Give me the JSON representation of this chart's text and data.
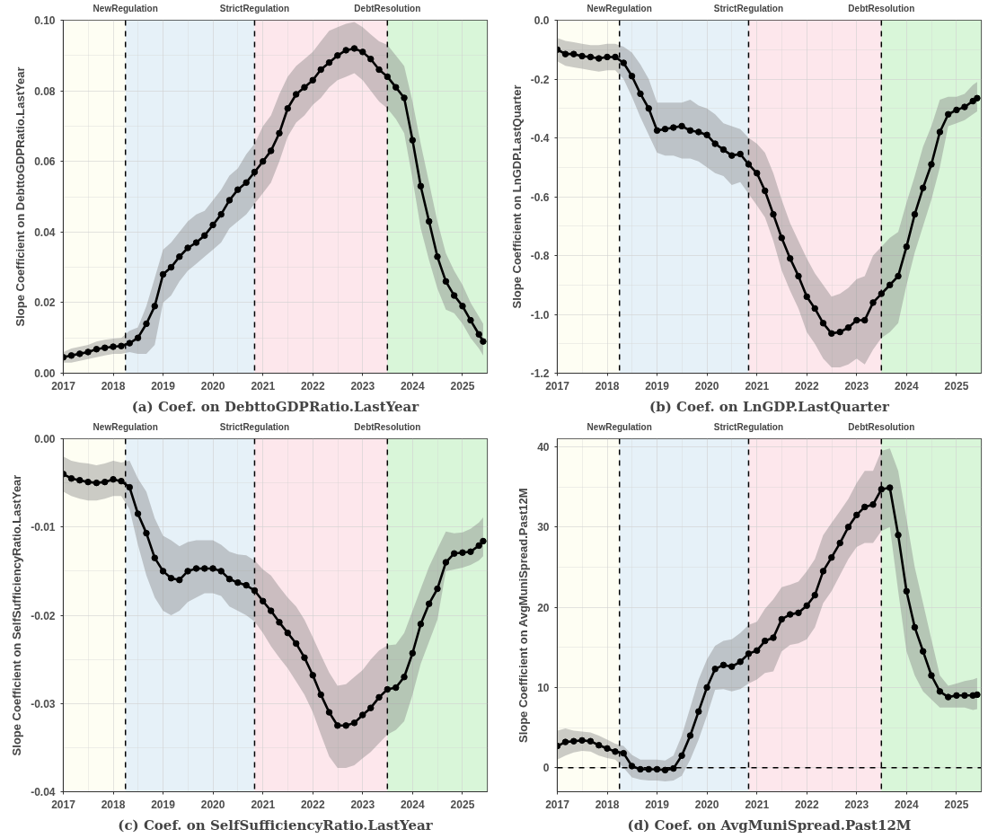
{
  "chart_data": [
    {
      "type": "line",
      "title": "(a) Coef. on DebttoGDPRatio.LastYear",
      "ylabel": "Slope Coefficient on DebttoGDPRatio.LastYear",
      "x": [
        "2017-01",
        "2017-03",
        "2017-05",
        "2017-07",
        "2017-09",
        "2017-11",
        "2018-01",
        "2018-03",
        "2018-05",
        "2018-07",
        "2018-09",
        "2018-11",
        "2019-01",
        "2019-03",
        "2019-05",
        "2019-07",
        "2019-09",
        "2019-11",
        "2020-01",
        "2020-03",
        "2020-05",
        "2020-07",
        "2020-09",
        "2020-11",
        "2021-01",
        "2021-03",
        "2021-05",
        "2021-07",
        "2021-09",
        "2021-11",
        "2022-01",
        "2022-03",
        "2022-05",
        "2022-07",
        "2022-09",
        "2022-11",
        "2023-01",
        "2023-03",
        "2023-05",
        "2023-07",
        "2023-09",
        "2023-11",
        "2024-01",
        "2024-03",
        "2024-05",
        "2024-07",
        "2024-09",
        "2024-11",
        "2025-01",
        "2025-03",
        "2025-05",
        "2025-06"
      ],
      "series": [
        {
          "color": "#000000",
          "values": [
            0.0045,
            0.005,
            0.0055,
            0.006,
            0.0068,
            0.0072,
            0.0075,
            0.0077,
            0.0085,
            0.01,
            0.014,
            0.019,
            0.028,
            0.03,
            0.033,
            0.0355,
            0.037,
            0.039,
            0.042,
            0.045,
            0.049,
            0.052,
            0.054,
            0.057,
            0.06,
            0.063,
            0.068,
            0.075,
            0.079,
            0.081,
            0.083,
            0.086,
            0.088,
            0.09,
            0.0915,
            0.092,
            0.091,
            0.089,
            0.086,
            0.084,
            0.081,
            0.078,
            0.066,
            0.053,
            0.043,
            0.033,
            0.026,
            0.022,
            0.019,
            0.015,
            0.011,
            0.009
          ],
          "lower": [
            0.003,
            0.003,
            0.0035,
            0.004,
            0.0045,
            0.005,
            0.0055,
            0.0055,
            0.006,
            0.0055,
            0.0055,
            0.008,
            0.02,
            0.022,
            0.026,
            0.029,
            0.031,
            0.033,
            0.035,
            0.037,
            0.041,
            0.043,
            0.045,
            0.048,
            0.051,
            0.054,
            0.06,
            0.067,
            0.071,
            0.073,
            0.076,
            0.078,
            0.081,
            0.083,
            0.084,
            0.085,
            0.083,
            0.08,
            0.077,
            0.075,
            0.072,
            0.068,
            0.055,
            0.041,
            0.032,
            0.024,
            0.018,
            0.017,
            0.014,
            0.01,
            0.007,
            0.005
          ],
          "upper": [
            0.006,
            0.007,
            0.0075,
            0.008,
            0.009,
            0.0095,
            0.0098,
            0.01,
            0.012,
            0.013,
            0.019,
            0.027,
            0.035,
            0.037,
            0.04,
            0.043,
            0.045,
            0.046,
            0.049,
            0.052,
            0.056,
            0.058,
            0.062,
            0.065,
            0.07,
            0.073,
            0.079,
            0.084,
            0.087,
            0.089,
            0.091,
            0.094,
            0.097,
            0.098,
            0.099,
            0.0995,
            0.098,
            0.096,
            0.094,
            0.093,
            0.09,
            0.087,
            0.077,
            0.065,
            0.054,
            0.043,
            0.034,
            0.029,
            0.025,
            0.02,
            0.016,
            0.014
          ]
        }
      ],
      "xlim": [
        "2017-01",
        "2025-07"
      ],
      "xticks": [
        "2017",
        "2018",
        "2019",
        "2020",
        "2021",
        "2022",
        "2023",
        "2024",
        "2025"
      ],
      "ylim": [
        0,
        0.1
      ],
      "yticks": [
        {
          "value": 0,
          "label": "0.00"
        },
        {
          "value": 0.02,
          "label": "0.02"
        },
        {
          "value": 0.04,
          "label": "0.04"
        },
        {
          "value": 0.06,
          "label": "0.06"
        },
        {
          "value": 0.08,
          "label": "0.08"
        },
        {
          "value": 0.1,
          "label": "0.10"
        }
      ],
      "bands": [
        {
          "axis": "x",
          "from": "2017-01",
          "to": "2018-04",
          "color": "#fefef3"
        },
        {
          "axis": "x",
          "from": "2018-04",
          "to": "2020-11",
          "color": "#e6f1f8"
        },
        {
          "axis": "x",
          "from": "2020-11",
          "to": "2023-07",
          "color": "#fde7ec"
        },
        {
          "axis": "x",
          "from": "2023-07",
          "to": "2025-07",
          "color": "#d9f6d9"
        }
      ],
      "ref_lines": [
        {
          "axis": "x",
          "value": "2018-04",
          "label": "NewRegulation",
          "line_style": "dashed"
        },
        {
          "axis": "x",
          "value": "2020-11",
          "label": "StrictRegulation",
          "line_style": "dashed"
        },
        {
          "axis": "x",
          "value": "2023-07",
          "label": "DebtResolution",
          "line_style": "dashed"
        }
      ],
      "grid": true,
      "marker": "circle",
      "line_style": "solid"
    },
    {
      "type": "line",
      "title": "(b) Coef. on LnGDP.LastQuarter",
      "ylabel": "Slope Coefficient on LnGDP.LastQuarter",
      "x": [
        "2017-01",
        "2017-03",
        "2017-05",
        "2017-07",
        "2017-09",
        "2017-11",
        "2018-01",
        "2018-03",
        "2018-05",
        "2018-07",
        "2018-09",
        "2018-11",
        "2019-01",
        "2019-03",
        "2019-05",
        "2019-07",
        "2019-09",
        "2019-11",
        "2020-01",
        "2020-03",
        "2020-05",
        "2020-07",
        "2020-09",
        "2020-11",
        "2021-01",
        "2021-03",
        "2021-05",
        "2021-07",
        "2021-09",
        "2021-11",
        "2022-01",
        "2022-03",
        "2022-05",
        "2022-07",
        "2022-09",
        "2022-11",
        "2023-01",
        "2023-03",
        "2023-05",
        "2023-07",
        "2023-09",
        "2023-11",
        "2024-01",
        "2024-03",
        "2024-05",
        "2024-07",
        "2024-09",
        "2024-11",
        "2025-01",
        "2025-03",
        "2025-05",
        "2025-06"
      ],
      "series": [
        {
          "color": "#000000",
          "values": [
            -0.1,
            -0.115,
            -0.115,
            -0.122,
            -0.125,
            -0.13,
            -0.125,
            -0.125,
            -0.145,
            -0.19,
            -0.25,
            -0.3,
            -0.375,
            -0.37,
            -0.365,
            -0.36,
            -0.375,
            -0.38,
            -0.39,
            -0.42,
            -0.44,
            -0.46,
            -0.455,
            -0.49,
            -0.52,
            -0.58,
            -0.66,
            -0.74,
            -0.81,
            -0.87,
            -0.94,
            -0.98,
            -1.03,
            -1.065,
            -1.06,
            -1.045,
            -1.02,
            -1.02,
            -0.96,
            -0.93,
            -0.9,
            -0.87,
            -0.77,
            -0.66,
            -0.57,
            -0.49,
            -0.38,
            -0.32,
            -0.305,
            -0.295,
            -0.275,
            -0.265
          ],
          "lower": [
            -0.14,
            -0.155,
            -0.16,
            -0.165,
            -0.17,
            -0.175,
            -0.17,
            -0.17,
            -0.2,
            -0.26,
            -0.33,
            -0.39,
            -0.45,
            -0.46,
            -0.46,
            -0.47,
            -0.47,
            -0.48,
            -0.5,
            -0.52,
            -0.53,
            -0.56,
            -0.55,
            -0.59,
            -0.63,
            -0.67,
            -0.75,
            -0.85,
            -0.92,
            -0.98,
            -1.06,
            -1.1,
            -1.15,
            -1.18,
            -1.18,
            -1.17,
            -1.15,
            -1.17,
            -1.12,
            -1.08,
            -1.06,
            -1.03,
            -0.9,
            -0.79,
            -0.7,
            -0.61,
            -0.5,
            -0.36,
            -0.35,
            -0.34,
            -0.32,
            -0.31
          ],
          "upper": [
            -0.06,
            -0.07,
            -0.075,
            -0.08,
            -0.085,
            -0.085,
            -0.08,
            -0.08,
            -0.09,
            -0.11,
            -0.15,
            -0.2,
            -0.28,
            -0.28,
            -0.28,
            -0.28,
            -0.27,
            -0.29,
            -0.3,
            -0.32,
            -0.35,
            -0.36,
            -0.37,
            -0.4,
            -0.42,
            -0.45,
            -0.52,
            -0.61,
            -0.69,
            -0.75,
            -0.81,
            -0.86,
            -0.9,
            -0.94,
            -0.93,
            -0.91,
            -0.88,
            -0.87,
            -0.8,
            -0.77,
            -0.74,
            -0.72,
            -0.62,
            -0.53,
            -0.43,
            -0.36,
            -0.27,
            -0.26,
            -0.26,
            -0.25,
            -0.22,
            -0.21
          ]
        }
      ],
      "xlim": [
        "2017-01",
        "2025-07"
      ],
      "xticks": [
        "2017",
        "2018",
        "2019",
        "2020",
        "2021",
        "2022",
        "2023",
        "2024",
        "2025"
      ],
      "ylim": [
        -1.2,
        0
      ],
      "yticks": [
        {
          "value": -1.2,
          "label": "-1.2"
        },
        {
          "value": -1.0,
          "label": "-1.0"
        },
        {
          "value": -0.8,
          "label": "-0.8"
        },
        {
          "value": -0.6,
          "label": "-0.6"
        },
        {
          "value": -0.4,
          "label": "-0.4"
        },
        {
          "value": -0.2,
          "label": "-0.2"
        },
        {
          "value": 0,
          "label": "0.0"
        }
      ],
      "bands": [
        {
          "axis": "x",
          "from": "2017-01",
          "to": "2018-04",
          "color": "#fefef3"
        },
        {
          "axis": "x",
          "from": "2018-04",
          "to": "2020-11",
          "color": "#e6f1f8"
        },
        {
          "axis": "x",
          "from": "2020-11",
          "to": "2023-07",
          "color": "#fde7ec"
        },
        {
          "axis": "x",
          "from": "2023-07",
          "to": "2025-07",
          "color": "#d9f6d9"
        }
      ],
      "ref_lines": [
        {
          "axis": "x",
          "value": "2018-04",
          "label": "NewRegulation",
          "line_style": "dashed"
        },
        {
          "axis": "x",
          "value": "2020-11",
          "label": "StrictRegulation",
          "line_style": "dashed"
        },
        {
          "axis": "x",
          "value": "2023-07",
          "label": "DebtResolution",
          "line_style": "dashed"
        }
      ],
      "grid": true,
      "marker": "circle",
      "line_style": "solid"
    },
    {
      "type": "line",
      "title": "(c) Coef. on SelfSufficiencyRatio.LastYear",
      "ylabel": "Slope Coefficient on SelfSufficiencyRatio.LastYear",
      "x": [
        "2017-01",
        "2017-03",
        "2017-05",
        "2017-07",
        "2017-09",
        "2017-11",
        "2018-01",
        "2018-03",
        "2018-05",
        "2018-07",
        "2018-09",
        "2018-11",
        "2019-01",
        "2019-03",
        "2019-05",
        "2019-07",
        "2019-09",
        "2019-11",
        "2020-01",
        "2020-03",
        "2020-05",
        "2020-07",
        "2020-09",
        "2020-11",
        "2021-01",
        "2021-03",
        "2021-05",
        "2021-07",
        "2021-09",
        "2021-11",
        "2022-01",
        "2022-03",
        "2022-05",
        "2022-07",
        "2022-09",
        "2022-11",
        "2023-01",
        "2023-03",
        "2023-05",
        "2023-07",
        "2023-09",
        "2023-11",
        "2024-01",
        "2024-03",
        "2024-05",
        "2024-07",
        "2024-09",
        "2024-11",
        "2025-01",
        "2025-03",
        "2025-05",
        "2025-06"
      ],
      "series": [
        {
          "color": "#000000",
          "values": [
            -0.004,
            -0.0045,
            -0.0047,
            -0.0049,
            -0.005,
            -0.0049,
            -0.0046,
            -0.0048,
            -0.0055,
            -0.0085,
            -0.0107,
            -0.0135,
            -0.015,
            -0.0158,
            -0.016,
            -0.015,
            -0.0147,
            -0.0147,
            -0.0147,
            -0.015,
            -0.0159,
            -0.0163,
            -0.0166,
            -0.0172,
            -0.0184,
            -0.0195,
            -0.0208,
            -0.022,
            -0.0232,
            -0.0248,
            -0.0268,
            -0.029,
            -0.031,
            -0.0325,
            -0.0325,
            -0.0322,
            -0.0313,
            -0.0305,
            -0.0293,
            -0.0284,
            -0.0282,
            -0.027,
            -0.0243,
            -0.021,
            -0.0187,
            -0.017,
            -0.014,
            -0.013,
            -0.0129,
            -0.0128,
            -0.0121,
            -0.0116
          ],
          "lower": [
            -0.006,
            -0.0065,
            -0.0068,
            -0.007,
            -0.007,
            -0.0068,
            -0.0065,
            -0.0065,
            -0.008,
            -0.012,
            -0.0155,
            -0.018,
            -0.0195,
            -0.02,
            -0.0195,
            -0.0185,
            -0.018,
            -0.0175,
            -0.0175,
            -0.0178,
            -0.019,
            -0.0195,
            -0.02,
            -0.0207,
            -0.022,
            -0.0235,
            -0.0248,
            -0.026,
            -0.0275,
            -0.029,
            -0.031,
            -0.0335,
            -0.036,
            -0.0373,
            -0.0373,
            -0.037,
            -0.0362,
            -0.0355,
            -0.0345,
            -0.0335,
            -0.033,
            -0.032,
            -0.029,
            -0.0255,
            -0.023,
            -0.0205,
            -0.015,
            -0.0148,
            -0.0146,
            -0.0143,
            -0.0138,
            -0.0133
          ],
          "upper": [
            -0.002,
            -0.0025,
            -0.0027,
            -0.0028,
            -0.003,
            -0.0028,
            -0.0025,
            -0.0027,
            -0.0025,
            -0.0045,
            -0.006,
            -0.009,
            -0.011,
            -0.0115,
            -0.0122,
            -0.0117,
            -0.0115,
            -0.0115,
            -0.0115,
            -0.012,
            -0.0128,
            -0.0131,
            -0.0132,
            -0.0138,
            -0.0148,
            -0.0155,
            -0.0168,
            -0.018,
            -0.019,
            -0.0205,
            -0.0225,
            -0.0245,
            -0.0265,
            -0.028,
            -0.0278,
            -0.027,
            -0.0262,
            -0.025,
            -0.024,
            -0.0234,
            -0.0233,
            -0.022,
            -0.0195,
            -0.017,
            -0.0145,
            -0.0125,
            -0.0105,
            -0.0107,
            -0.0106,
            -0.0102,
            -0.0095,
            -0.0089
          ]
        }
      ],
      "xlim": [
        "2017-01",
        "2025-07"
      ],
      "xticks": [
        "2017",
        "2018",
        "2019",
        "2020",
        "2021",
        "2022",
        "2023",
        "2024",
        "2025"
      ],
      "ylim": [
        -0.04,
        0
      ],
      "yticks": [
        {
          "value": -0.04,
          "label": "-0.04"
        },
        {
          "value": -0.03,
          "label": "-0.03"
        },
        {
          "value": -0.02,
          "label": "-0.02"
        },
        {
          "value": -0.01,
          "label": "-0.01"
        },
        {
          "value": 0,
          "label": "0.00"
        }
      ],
      "bands": [
        {
          "axis": "x",
          "from": "2017-01",
          "to": "2018-04",
          "color": "#fefef3"
        },
        {
          "axis": "x",
          "from": "2018-04",
          "to": "2020-11",
          "color": "#e6f1f8"
        },
        {
          "axis": "x",
          "from": "2020-11",
          "to": "2023-07",
          "color": "#fde7ec"
        },
        {
          "axis": "x",
          "from": "2023-07",
          "to": "2025-07",
          "color": "#d9f6d9"
        }
      ],
      "ref_lines": [
        {
          "axis": "x",
          "value": "2018-04",
          "label": "NewRegulation",
          "line_style": "dashed"
        },
        {
          "axis": "x",
          "value": "2020-11",
          "label": "StrictRegulation",
          "line_style": "dashed"
        },
        {
          "axis": "x",
          "value": "2023-07",
          "label": "DebtResolution",
          "line_style": "dashed"
        }
      ],
      "grid": true,
      "marker": "circle",
      "line_style": "solid"
    },
    {
      "type": "line",
      "title": "(d) Coef. on AvgMuniSpread.Past12M",
      "ylabel": "Slope Coefficient on AvgMuniSpread.Past12M",
      "x": [
        "2017-01",
        "2017-03",
        "2017-05",
        "2017-07",
        "2017-09",
        "2017-11",
        "2018-01",
        "2018-03",
        "2018-05",
        "2018-07",
        "2018-09",
        "2018-11",
        "2019-01",
        "2019-03",
        "2019-05",
        "2019-07",
        "2019-09",
        "2019-11",
        "2020-01",
        "2020-03",
        "2020-05",
        "2020-07",
        "2020-09",
        "2020-11",
        "2021-01",
        "2021-03",
        "2021-05",
        "2021-07",
        "2021-09",
        "2021-11",
        "2022-01",
        "2022-03",
        "2022-05",
        "2022-07",
        "2022-09",
        "2022-11",
        "2023-01",
        "2023-03",
        "2023-05",
        "2023-07",
        "2023-09",
        "2023-11",
        "2024-01",
        "2024-03",
        "2024-05",
        "2024-07",
        "2024-09",
        "2024-11",
        "2025-01",
        "2025-03",
        "2025-05",
        "2025-06"
      ],
      "series": [
        {
          "color": "#000000",
          "values": [
            2.7,
            3.2,
            3.3,
            3.4,
            3.3,
            2.8,
            2.4,
            2.0,
            1.8,
            0.2,
            -0.2,
            -0.2,
            -0.2,
            -0.3,
            -0.1,
            1.5,
            4.0,
            7.0,
            10.0,
            12.3,
            12.8,
            12.6,
            13.2,
            14.2,
            14.6,
            15.8,
            16.2,
            18.5,
            19.1,
            19.3,
            20.2,
            21.5,
            24.5,
            26.2,
            28.0,
            30.0,
            31.5,
            32.5,
            32.8,
            34.7,
            34.9,
            29.0,
            22.0,
            17.5,
            14.5,
            11.5,
            9.5,
            8.8,
            9.0,
            9.0,
            9.0,
            9.1
          ],
          "lower": [
            1.0,
            1.5,
            1.9,
            2.1,
            2.0,
            1.5,
            1.2,
            1.0,
            0.0,
            -1.2,
            -1.5,
            -1.6,
            -1.6,
            -1.7,
            -1.6,
            -1.0,
            1.0,
            3.5,
            6.5,
            9.7,
            9.8,
            9.5,
            9.8,
            10.5,
            11.0,
            11.8,
            12.0,
            14.5,
            15.3,
            15.5,
            16.0,
            17.5,
            20.5,
            22.0,
            24.0,
            26.0,
            27.5,
            28.0,
            28.0,
            29.5,
            30.0,
            22.0,
            14.5,
            11.5,
            9.5,
            8.5,
            7.5,
            7.5,
            7.5,
            7.5,
            7.2,
            7.3
          ],
          "upper": [
            4.6,
            4.9,
            4.6,
            4.5,
            4.4,
            4.0,
            3.5,
            3.0,
            2.7,
            1.6,
            1.0,
            1.0,
            1.0,
            0.9,
            1.5,
            4.0,
            7.5,
            11.0,
            13.5,
            15.2,
            15.8,
            16.0,
            16.8,
            17.8,
            18.2,
            19.8,
            21.0,
            22.5,
            22.8,
            23.2,
            24.5,
            26.0,
            29.0,
            30.5,
            32.0,
            33.5,
            35.5,
            37.0,
            37.0,
            39.5,
            39.8,
            37.0,
            31.0,
            25.0,
            20.5,
            16.0,
            11.5,
            10.2,
            10.5,
            10.8,
            11.0,
            11.2
          ]
        }
      ],
      "xlim": [
        "2017-01",
        "2025-07"
      ],
      "xticks": [
        "2017",
        "2018",
        "2019",
        "2020",
        "2021",
        "2022",
        "2023",
        "2024",
        "2025"
      ],
      "ylim": [
        -3,
        41
      ],
      "yticks": [
        0,
        10,
        20,
        30,
        40
      ],
      "bands": [
        {
          "axis": "x",
          "from": "2017-01",
          "to": "2018-04",
          "color": "#fefef3"
        },
        {
          "axis": "x",
          "from": "2018-04",
          "to": "2020-11",
          "color": "#e6f1f8"
        },
        {
          "axis": "x",
          "from": "2020-11",
          "to": "2023-07",
          "color": "#fde7ec"
        },
        {
          "axis": "x",
          "from": "2023-07",
          "to": "2025-07",
          "color": "#d9f6d9"
        }
      ],
      "ref_lines": [
        {
          "axis": "x",
          "value": "2018-04",
          "label": "NewRegulation",
          "line_style": "dashed"
        },
        {
          "axis": "x",
          "value": "2020-11",
          "label": "StrictRegulation",
          "line_style": "dashed"
        },
        {
          "axis": "x",
          "value": "2023-07",
          "label": "DebtResolution",
          "line_style": "dashed"
        },
        {
          "axis": "y",
          "value": 0,
          "line_style": "dashed"
        }
      ],
      "grid": true,
      "marker": "circle",
      "line_style": "solid"
    }
  ]
}
